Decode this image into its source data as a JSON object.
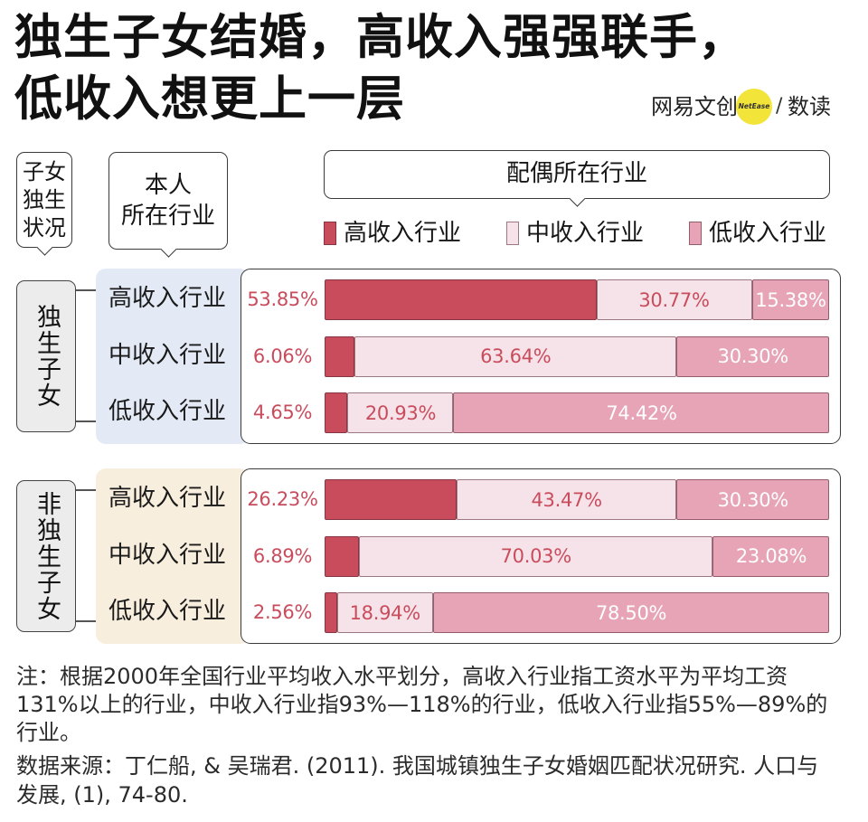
{
  "title": {
    "line1": "独生子女结婚，高收入强强联手，",
    "line2": "低收入想更上一层"
  },
  "logo": {
    "brand": "网易文创",
    "badge": "NetEase",
    "separator": "/",
    "section": "数读",
    "badge_color": "#f3e43a"
  },
  "headers": {
    "status_lines": [
      "子女",
      "独生",
      "状况"
    ],
    "self_lines": [
      "本人",
      "所在行业"
    ],
    "spouse": "配偶所在行业"
  },
  "chart_data": {
    "type": "bar",
    "orientation": "horizontal",
    "stacked": true,
    "unit": "%",
    "xlim": [
      0,
      100
    ],
    "legend_position": "top",
    "categories": [
      "高收入行业",
      "中收入行业",
      "低收入行业"
    ],
    "series": [
      {
        "name": "高收入行业",
        "color": "#c94c5d",
        "label_color": "#c94c5d"
      },
      {
        "name": "中收入行业",
        "color": "#f6e3e9",
        "label_color": "#c94c5d"
      },
      {
        "name": "低收入行业",
        "color": "#e6a4b6",
        "label_color": "#ffffff"
      }
    ],
    "groups": [
      {
        "name": "独生子女",
        "panel_color": "#e3eaf6",
        "values": [
          [
            53.85,
            30.77,
            15.38
          ],
          [
            6.06,
            63.64,
            30.3
          ],
          [
            4.65,
            20.93,
            74.42
          ]
        ]
      },
      {
        "name": "非独生子女",
        "panel_color": "#f8eedd",
        "values": [
          [
            26.23,
            43.47,
            30.3
          ],
          [
            6.89,
            70.03,
            23.08
          ],
          [
            2.56,
            18.94,
            78.5
          ]
        ]
      }
    ]
  },
  "notes": {
    "note_lines": [
      "注：根据2000年全国行业平均收入水平划分，高收入行业指工资水平为平均工资",
      "131%以上的行业，中收入行业指93%—118%的行业，低收入行业指55%—89%的",
      "行业。"
    ],
    "source_lines": [
      "数据来源：丁仁船, & 吴瑞君. (2011). 我国城镇独生子女婚姻匹配状况研究. 人口与",
      "发展, (1), 74-80."
    ]
  }
}
